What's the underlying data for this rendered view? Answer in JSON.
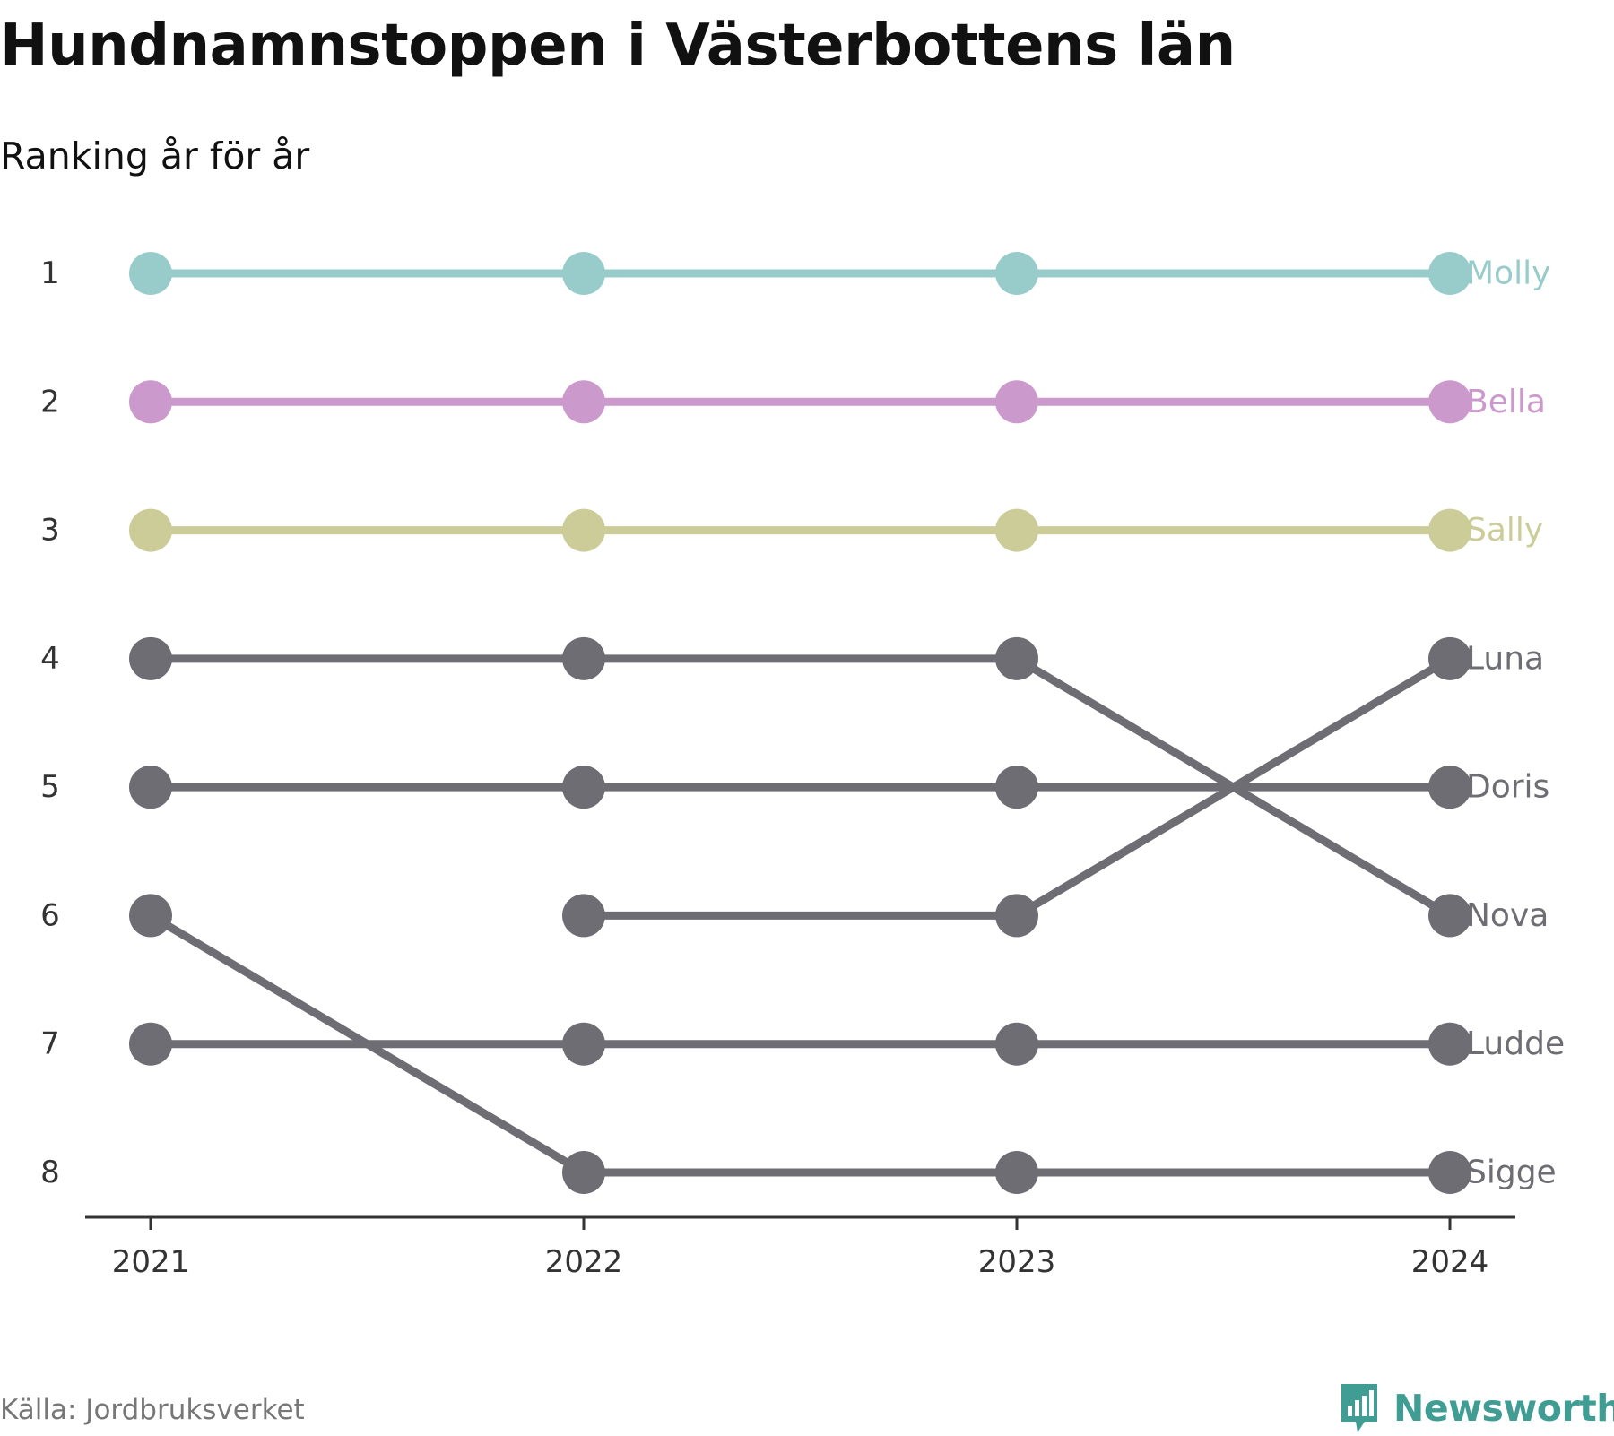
{
  "title": "Hundnamnstoppen i Västerbottens län",
  "subtitle": "Ranking år för år",
  "source": "Källa: Jordbruksverket",
  "logo": {
    "text": "Newsworthy",
    "icon": "newsworthy-bar-chart-icon",
    "color": "#3f9d93"
  },
  "chart_data": {
    "type": "line",
    "subtype": "bump",
    "title": "Hundnamnstoppen i Västerbottens län",
    "subtitle": "Ranking år för år",
    "x": [
      "2021",
      "2022",
      "2023",
      "2024"
    ],
    "y_ticks": [
      1,
      2,
      3,
      4,
      5,
      6,
      7,
      8
    ],
    "ylim": [
      1,
      8
    ],
    "y_reversed": true,
    "grid": false,
    "legend": "direct labels at right",
    "series": [
      {
        "name": "Molly",
        "values": [
          1,
          1,
          1,
          1
        ],
        "color": "#98cccb"
      },
      {
        "name": "Bella",
        "values": [
          2,
          2,
          2,
          2
        ],
        "color": "#cc99cc"
      },
      {
        "name": "Sally",
        "values": [
          3,
          3,
          3,
          3
        ],
        "color": "#cccc99"
      },
      {
        "name": "Luna",
        "values": [
          null,
          6,
          6,
          4
        ],
        "color": "#6d6d73"
      },
      {
        "name": "Doris",
        "values": [
          5,
          5,
          5,
          5
        ],
        "color": "#6d6d73"
      },
      {
        "name": "Nova",
        "values": [
          4,
          4,
          4,
          6
        ],
        "color": "#6d6d73"
      },
      {
        "name": "Ludde",
        "values": [
          7,
          7,
          7,
          7
        ],
        "color": "#6d6d73"
      },
      {
        "name": "Sigge",
        "values": [
          6,
          8,
          8,
          8
        ],
        "color": "#6d6d73"
      }
    ]
  }
}
